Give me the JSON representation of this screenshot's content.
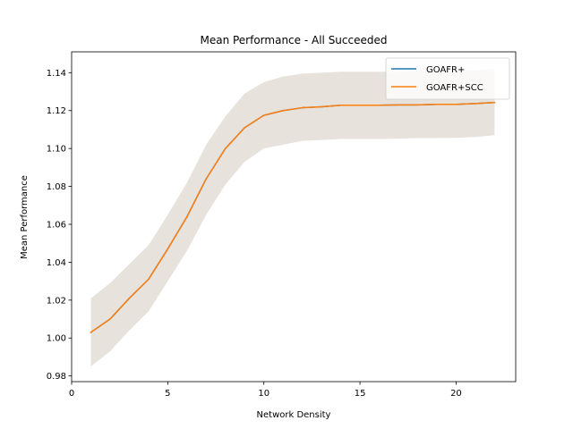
{
  "chart_data": {
    "type": "line",
    "title": "Mean Performance - All Succeeded",
    "xlabel": "Network Density",
    "ylabel": "Mean Performance",
    "xlim": [
      0,
      23.1
    ],
    "ylim": [
      0.977,
      1.151
    ],
    "xticks": [
      0,
      5,
      10,
      15,
      20
    ],
    "yticks": [
      0.98,
      1.0,
      1.02,
      1.04,
      1.06,
      1.08,
      1.1,
      1.12,
      1.14
    ],
    "x": [
      1,
      2,
      3,
      4,
      5,
      6,
      7,
      8,
      9,
      10,
      11,
      12,
      13,
      14,
      15,
      16,
      17,
      18,
      19,
      20,
      21,
      22
    ],
    "band": {
      "color": "#e8e2dc",
      "lower": [
        0.985,
        0.993,
        1.004,
        1.014,
        1.03,
        1.046,
        1.065,
        1.081,
        1.093,
        1.1,
        1.102,
        1.104,
        1.1045,
        1.105,
        1.105,
        1.105,
        1.1052,
        1.1055,
        1.1055,
        1.1056,
        1.106,
        1.107
      ],
      "upper": [
        1.021,
        1.029,
        1.039,
        1.049,
        1.065,
        1.082,
        1.102,
        1.117,
        1.129,
        1.135,
        1.138,
        1.1395,
        1.14,
        1.1405,
        1.1405,
        1.1405,
        1.1405,
        1.141,
        1.141,
        1.141,
        1.1413,
        1.142
      ]
    },
    "series": [
      {
        "name": "GOAFR+",
        "color": "#1f77b4",
        "values": [
          1.003,
          1.01,
          1.021,
          1.031,
          1.047,
          1.064,
          1.084,
          1.1,
          1.111,
          1.1175,
          1.12,
          1.1215,
          1.122,
          1.1228,
          1.1228,
          1.1228,
          1.123,
          1.123,
          1.1233,
          1.1233,
          1.1237,
          1.1243
        ]
      },
      {
        "name": "GOAFR+SCC",
        "color": "#ff7f0e",
        "values": [
          1.003,
          1.01,
          1.021,
          1.031,
          1.047,
          1.064,
          1.084,
          1.1,
          1.111,
          1.1175,
          1.12,
          1.1215,
          1.122,
          1.1228,
          1.1228,
          1.1228,
          1.123,
          1.123,
          1.1233,
          1.1233,
          1.1237,
          1.1243
        ]
      }
    ],
    "legend_position": "top-right",
    "grid": false
  }
}
